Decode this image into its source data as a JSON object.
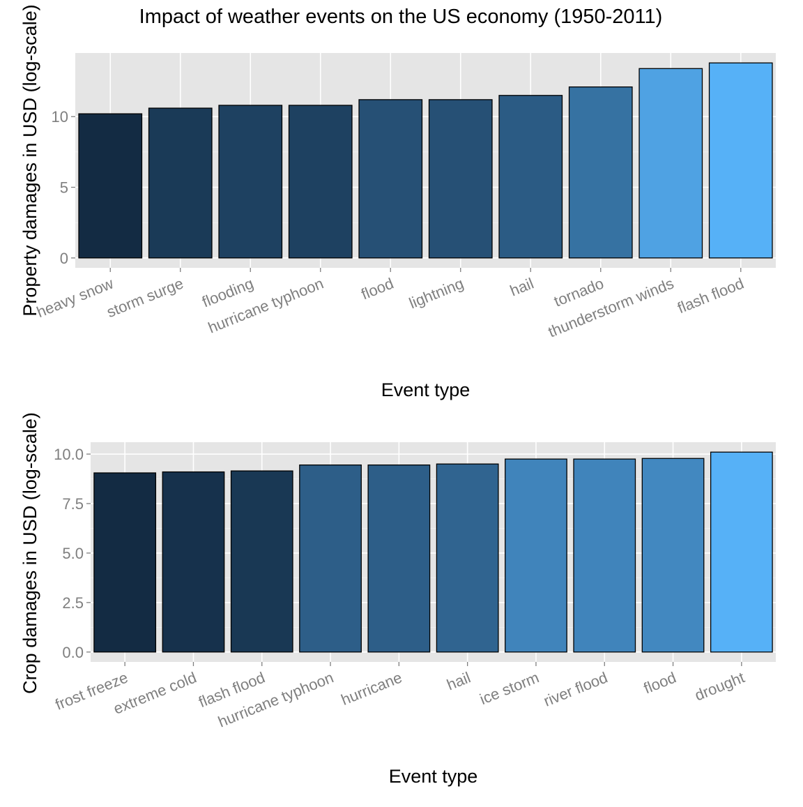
{
  "title": "Impact of weather events on the US economy (1950-2011)",
  "chart_data": [
    {
      "type": "bar",
      "xlabel": "Event type",
      "ylabel": "Property damages in USD (log-scale)",
      "categories": [
        "heavy snow",
        "storm surge",
        "flooding",
        "hurricane typhoon",
        "flood",
        "lightning",
        "hail",
        "tornado",
        "thunderstorm winds",
        "flash flood"
      ],
      "values": [
        10.2,
        10.6,
        10.8,
        10.8,
        11.2,
        11.2,
        11.5,
        12.1,
        13.4,
        13.8
      ],
      "yticks": [
        0,
        5,
        10
      ],
      "ytick_labels": [
        "0",
        "5",
        "10"
      ],
      "ylim": [
        -0.7,
        14.5
      ],
      "grid": true,
      "fill_scale": {
        "low": "#132B43",
        "high": "#56B1F7"
      }
    },
    {
      "type": "bar",
      "xlabel": "Event type",
      "ylabel": "Crop damages in USD (log-scale)",
      "categories": [
        "frost freeze",
        "extreme cold",
        "flash flood",
        "hurricane typhoon",
        "hurricane",
        "hail",
        "ice storm",
        "river flood",
        "flood",
        "drought"
      ],
      "values": [
        9.05,
        9.1,
        9.15,
        9.45,
        9.45,
        9.5,
        9.75,
        9.75,
        9.78,
        10.1
      ],
      "yticks": [
        0,
        2.5,
        5,
        7.5,
        10
      ],
      "ytick_labels": [
        "0.0",
        "2.5",
        "5.0",
        "7.5",
        "10.0"
      ],
      "ylim": [
        -0.5,
        10.6
      ],
      "grid": true,
      "fill_scale": {
        "low": "#132B43",
        "high": "#56B1F7"
      }
    }
  ]
}
